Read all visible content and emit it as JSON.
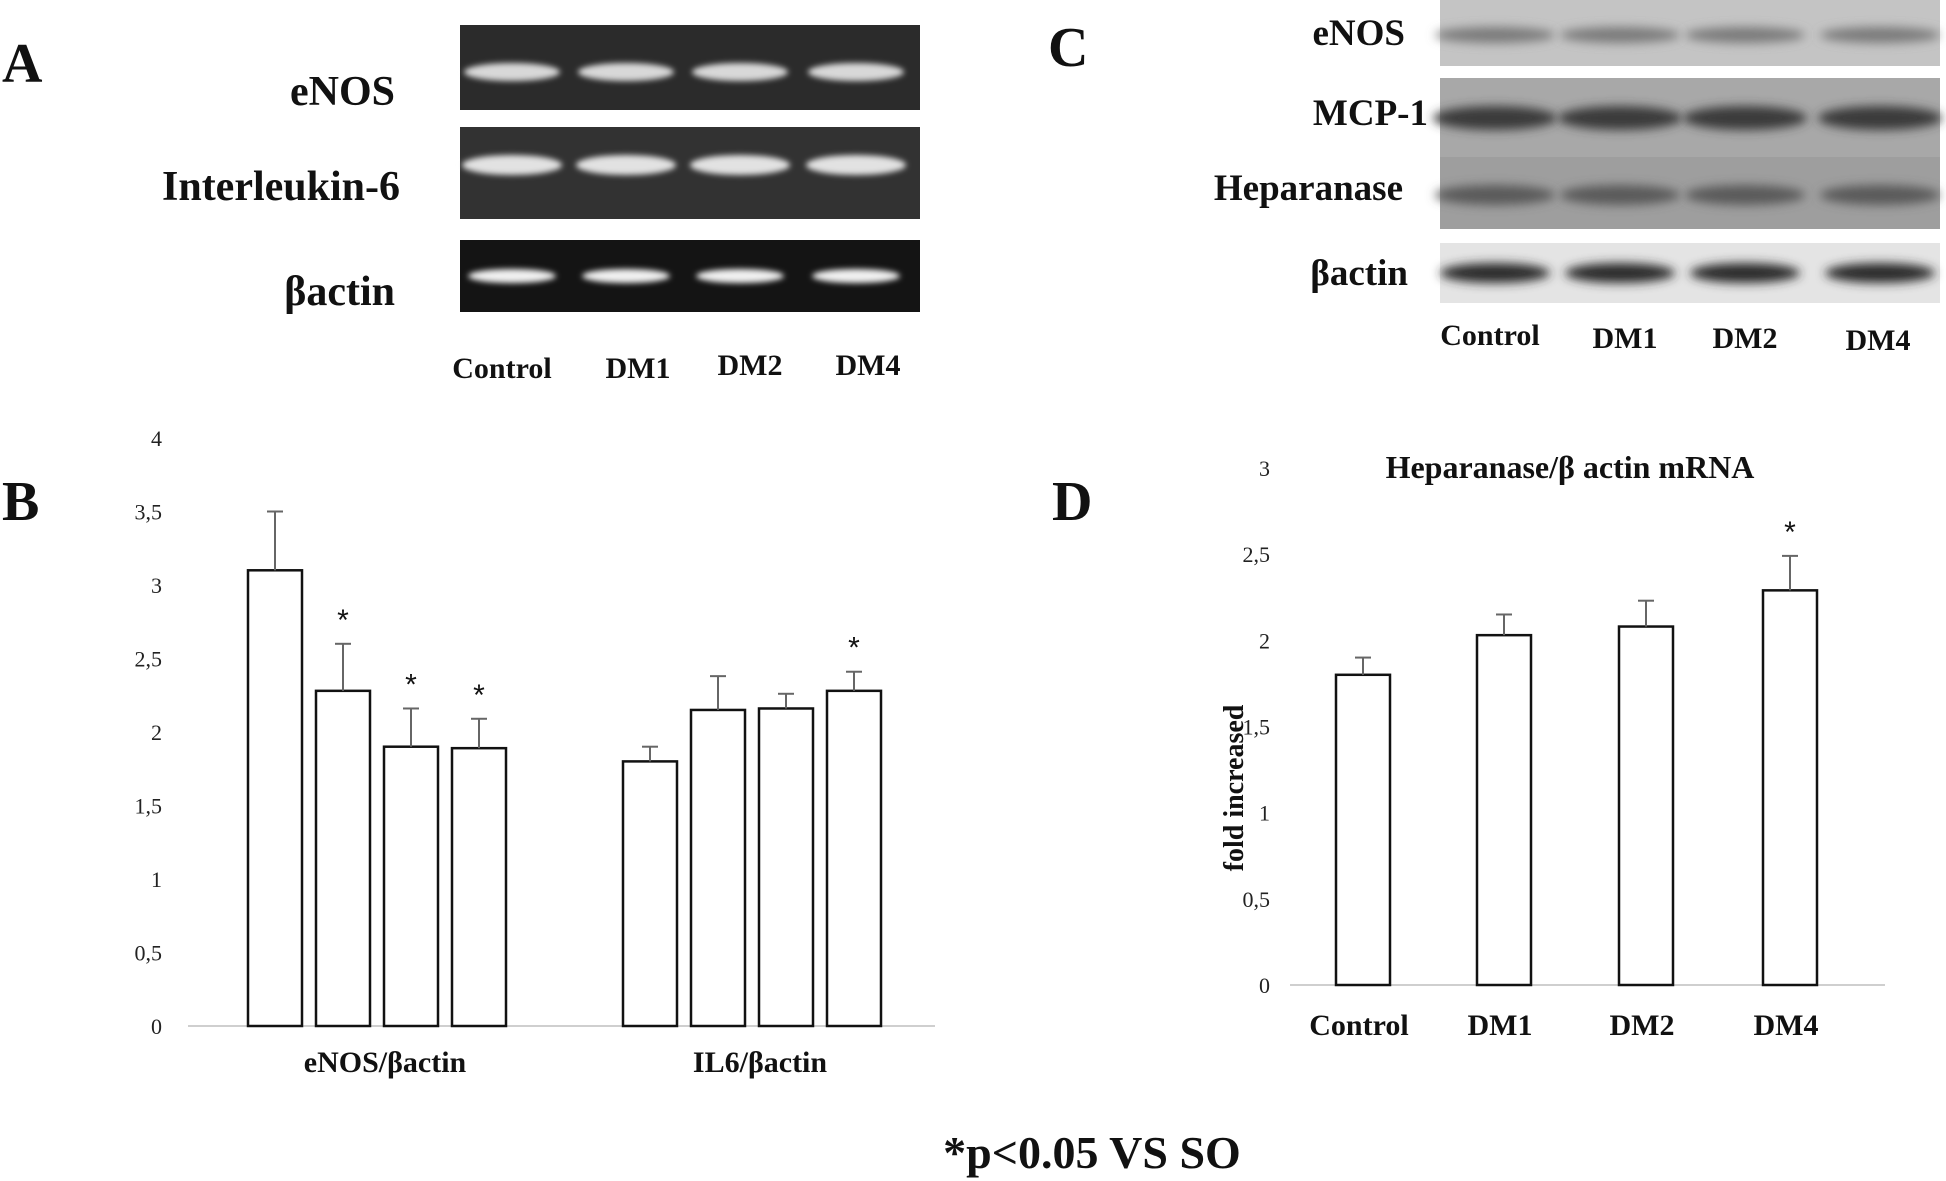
{
  "panels": {
    "a": {
      "letter": "A",
      "rows": [
        "eNOS",
        "Interleukin-6",
        "βactin"
      ],
      "lanes": [
        "Control",
        "DM1",
        "DM2",
        "DM4"
      ]
    },
    "c": {
      "letter": "C",
      "rows": [
        "eNOS",
        "MCP-1",
        "Heparanase",
        "βactin"
      ],
      "lanes": [
        "Control",
        "DM1",
        "DM2",
        "DM4"
      ]
    },
    "b": {
      "letter": "B"
    },
    "d": {
      "letter": "D"
    }
  },
  "chart_data": [
    {
      "type": "bar",
      "panel": "B",
      "title": "",
      "ylabel": "",
      "ylim": [
        0,
        4
      ],
      "yticks": [
        "0",
        "0,5",
        "1",
        "1,5",
        "2",
        "2,5",
        "3",
        "3,5",
        "4"
      ],
      "groups": [
        "eNOS/βactin",
        "IL6/βactin"
      ],
      "series": [
        {
          "group": "eNOS/βactin",
          "values": [
            3.1,
            2.28,
            1.9,
            1.89
          ],
          "errors": [
            0.4,
            0.32,
            0.26,
            0.2
          ],
          "significant": [
            false,
            true,
            true,
            true
          ]
        },
        {
          "group": "IL6/βactin",
          "values": [
            1.8,
            2.15,
            2.16,
            2.28
          ],
          "errors": [
            0.1,
            0.23,
            0.1,
            0.13
          ],
          "significant": [
            false,
            false,
            false,
            true
          ]
        }
      ],
      "grid": false
    },
    {
      "type": "bar",
      "panel": "D",
      "title": "Heparanase/β actin mRNA",
      "ylabel": "fold increased",
      "ylim": [
        0,
        3
      ],
      "yticks": [
        "0",
        "0,5",
        "1",
        "1,5",
        "2",
        "2,5",
        "3"
      ],
      "categories": [
        "Control",
        "DM1",
        "DM2",
        "DM4"
      ],
      "values": [
        1.8,
        2.03,
        2.08,
        2.29
      ],
      "errors": [
        0.1,
        0.12,
        0.15,
        0.2
      ],
      "significant": [
        false,
        false,
        false,
        true
      ],
      "grid": false
    }
  ],
  "significance_marker": "*",
  "footnote": "*p<0.05 VS SO"
}
